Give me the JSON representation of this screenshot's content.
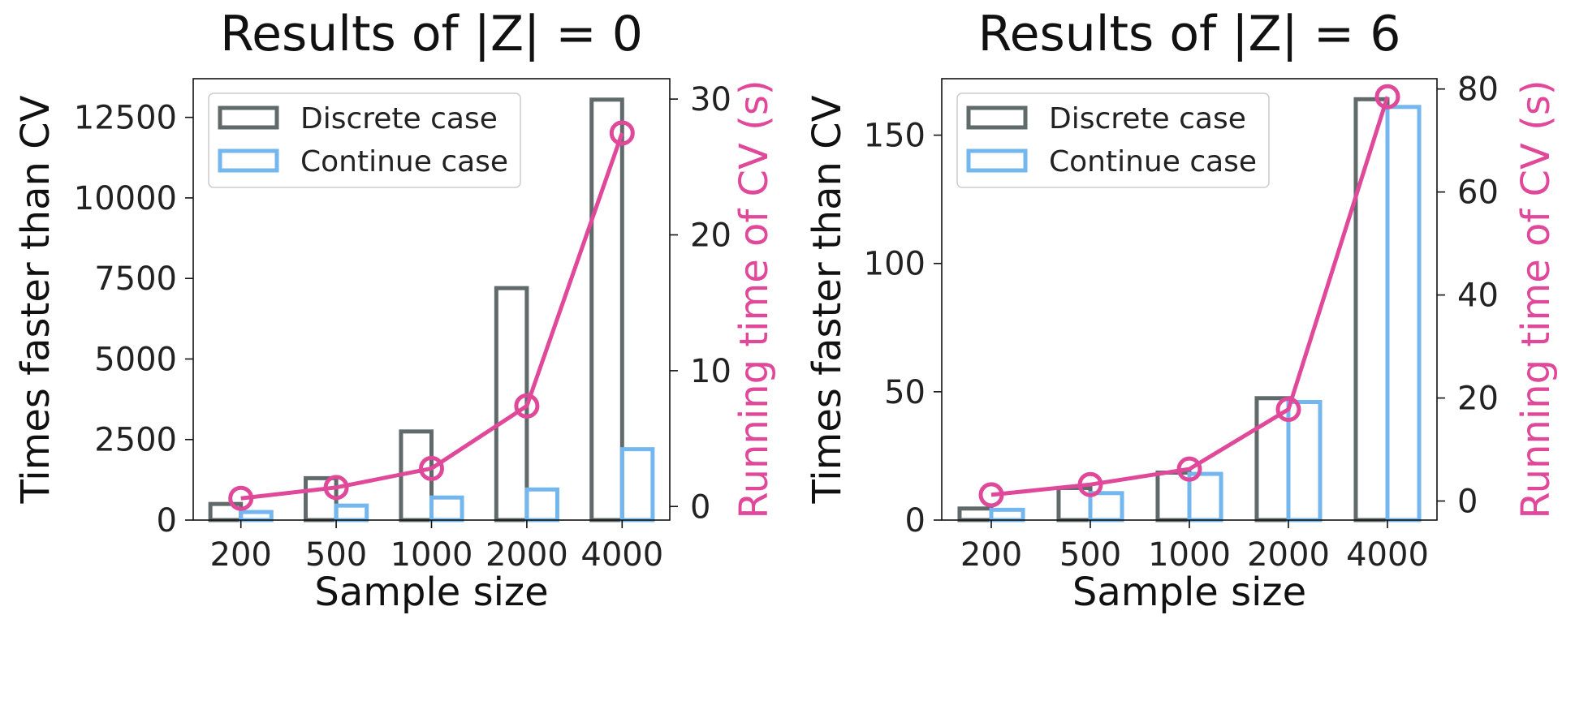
{
  "colors": {
    "discrete": "#616a6b",
    "continue": "#74b7ee",
    "runtime": "#e0489a",
    "axis": "#111111"
  },
  "chart_data": [
    {
      "type": "bar",
      "title": "Results of |Z| = 0",
      "xlabel": "Sample size",
      "ylabel": "Times faster than CV",
      "y2label": "Running time of CV (s)",
      "categories": [
        "200",
        "500",
        "1000",
        "2000",
        "4000"
      ],
      "ylim": [
        0,
        13700
      ],
      "yticks": [
        0,
        2500,
        5000,
        7500,
        10000,
        12500
      ],
      "y2lim": [
        -1,
        31.5
      ],
      "y2ticks": [
        0,
        10,
        20,
        30
      ],
      "legend": "top-left",
      "series": [
        {
          "name": "Discrete case",
          "kind": "bar",
          "axis": "left",
          "color_key": "discrete",
          "values": [
            500,
            1300,
            2750,
            7200,
            13050
          ]
        },
        {
          "name": "Continue case",
          "kind": "bar",
          "axis": "left",
          "color_key": "continue",
          "values": [
            250,
            450,
            700,
            950,
            2200
          ]
        },
        {
          "kind": "line",
          "axis": "right",
          "color_key": "runtime",
          "values": [
            0.6,
            1.4,
            2.8,
            7.4,
            27.5
          ]
        }
      ]
    },
    {
      "type": "bar",
      "title": "Results of |Z| = 6",
      "xlabel": "Sample size",
      "ylabel": "Times faster than CV",
      "y2label": "Running time of CV (s)",
      "categories": [
        "200",
        "500",
        "1000",
        "2000",
        "4000"
      ],
      "ylim": [
        0,
        172
      ],
      "yticks": [
        0,
        50,
        100,
        150
      ],
      "y2lim": [
        -3.7,
        82
      ],
      "y2ticks": [
        0,
        20,
        40,
        60,
        80
      ],
      "legend": "top-left",
      "series": [
        {
          "name": "Discrete case",
          "kind": "bar",
          "axis": "left",
          "color_key": "discrete",
          "values": [
            4.5,
            12.5,
            18.5,
            47.5,
            164
          ]
        },
        {
          "name": "Continue case",
          "kind": "bar",
          "axis": "left",
          "color_key": "continue",
          "values": [
            4,
            10.5,
            18,
            46,
            161
          ]
        },
        {
          "kind": "line",
          "axis": "right",
          "color_key": "runtime",
          "values": [
            1.2,
            3.2,
            6.2,
            17.8,
            78.5
          ]
        }
      ]
    }
  ]
}
